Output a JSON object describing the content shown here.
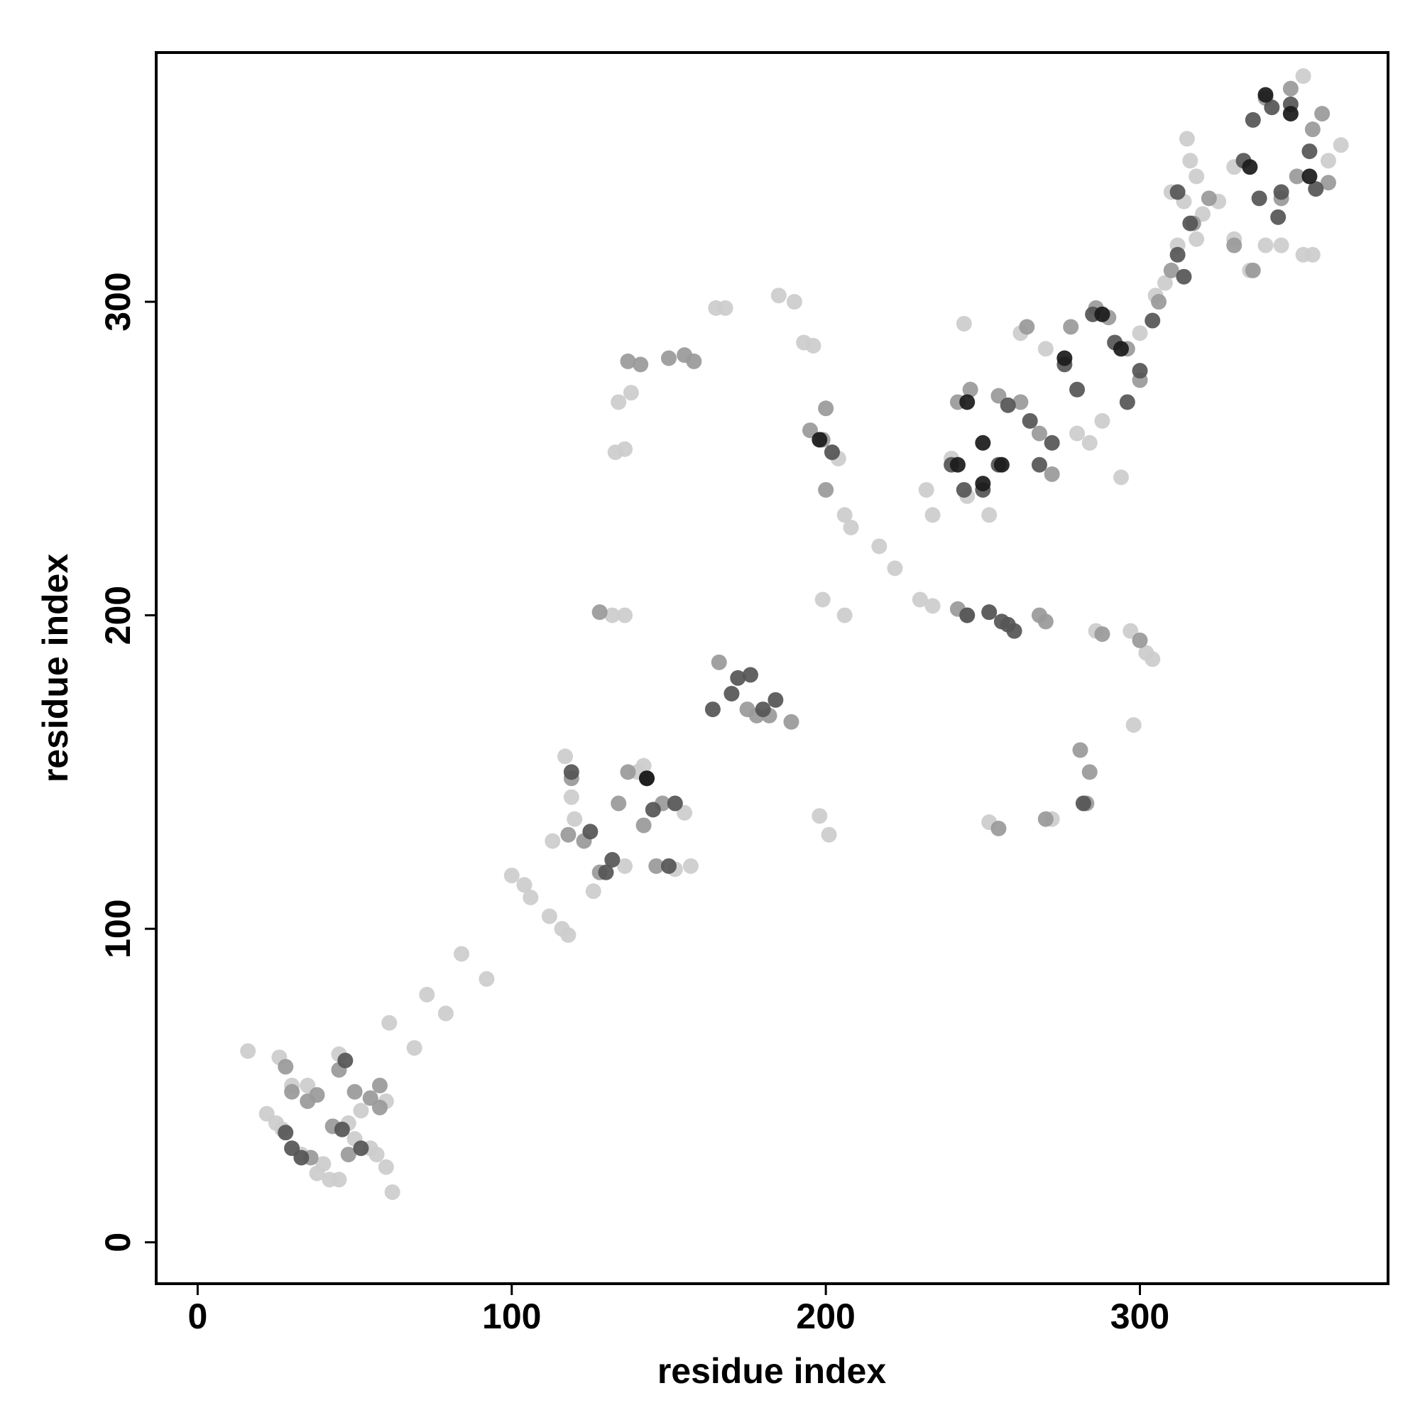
{
  "chart_data": {
    "type": "scatter",
    "x_label": "residue index",
    "y_label": "residue index",
    "xlim": [
      -13.2,
      379
    ],
    "ylim": [
      -13.2,
      379.5
    ],
    "xticks": [
      0,
      100,
      200,
      300
    ],
    "yticks": [
      0,
      100,
      200,
      300
    ],
    "series": [
      {
        "color": "#cccccc",
        "x": [
          16,
          22,
          25,
          27,
          30,
          35,
          40,
          42,
          38,
          45,
          48,
          50,
          55,
          57,
          60,
          62,
          26,
          52,
          60,
          33,
          45,
          61,
          69,
          73,
          79,
          84,
          92,
          100,
          104,
          106,
          112,
          116,
          118,
          117,
          119,
          113,
          126,
          136,
          152,
          157,
          140,
          155,
          120,
          142,
          136,
          132,
          133,
          136,
          134,
          138,
          165,
          168,
          185,
          190,
          193,
          196,
          202,
          204,
          206,
          208,
          217,
          222,
          206,
          199,
          198,
          201,
          230,
          234,
          252,
          286,
          297,
          302,
          304,
          298,
          272,
          252,
          232,
          234,
          240,
          245,
          252,
          244,
          262,
          270,
          280,
          284,
          288,
          294,
          300,
          305,
          308,
          312,
          318,
          315,
          316,
          318,
          314,
          310,
          320,
          325,
          330,
          335,
          340,
          345,
          352,
          355,
          352,
          360,
          364,
          330
        ],
        "y": [
          61,
          41,
          38,
          36,
          50,
          50,
          25,
          20,
          22,
          60,
          38,
          33,
          30,
          28,
          24,
          16,
          59,
          42,
          45,
          28,
          20,
          70,
          62,
          79,
          73,
          92,
          84,
          117,
          114,
          110,
          104,
          100,
          98,
          155,
          142,
          128,
          112,
          120,
          119,
          120,
          150,
          137,
          135,
          152,
          200,
          200,
          252,
          253,
          268,
          271,
          298,
          298,
          302,
          300,
          287,
          286,
          252,
          250,
          232,
          228,
          222,
          215,
          200,
          205,
          136,
          130,
          205,
          203,
          201,
          195,
          195,
          188,
          186,
          165,
          135,
          134,
          240,
          232,
          250,
          238,
          232,
          293,
          290,
          285,
          258,
          255,
          262,
          244,
          290,
          302,
          306,
          318,
          320,
          352,
          345,
          340,
          332,
          335,
          328,
          332,
          320,
          310,
          318,
          318,
          315,
          315,
          372,
          345,
          350,
          343
        ]
      },
      {
        "color": "#999999",
        "x": [
          28,
          30,
          35,
          38,
          45,
          50,
          55,
          58,
          36,
          48,
          43,
          58,
          118,
          123,
          128,
          134,
          142,
          148,
          146,
          119,
          137,
          128,
          137,
          141,
          150,
          155,
          158,
          195,
          199,
          200,
          166,
          175,
          178,
          182,
          189,
          242,
          245,
          268,
          270,
          288,
          300,
          284,
          283,
          281,
          270,
          255,
          242,
          246,
          255,
          262,
          268,
          272,
          278,
          286,
          290,
          296,
          300,
          306,
          310,
          264,
          317,
          322,
          330,
          336,
          345,
          350,
          355,
          358,
          360,
          340,
          348,
          200
        ],
        "y": [
          56,
          48,
          45,
          47,
          55,
          48,
          46,
          43,
          27,
          28,
          37,
          50,
          130,
          128,
          118,
          140,
          133,
          140,
          120,
          148,
          150,
          201,
          281,
          280,
          282,
          283,
          281,
          259,
          256,
          266,
          185,
          170,
          168,
          168,
          166,
          202,
          200,
          200,
          198,
          194,
          192,
          150,
          140,
          157,
          135,
          132,
          268,
          272,
          270,
          268,
          258,
          245,
          292,
          298,
          295,
          285,
          275,
          300,
          310,
          292,
          325,
          333,
          318,
          310,
          333,
          340,
          355,
          360,
          338,
          365,
          368,
          240
        ]
      },
      {
        "color": "#555555",
        "x": [
          28,
          33,
          47,
          30,
          52,
          46,
          119,
          125,
          132,
          143,
          150,
          152,
          145,
          130,
          172,
          176,
          184,
          180,
          170,
          164,
          202,
          245,
          252,
          256,
          258,
          260,
          282,
          240,
          244,
          250,
          255,
          258,
          265,
          268,
          272,
          276,
          280,
          285,
          292,
          296,
          300,
          304,
          312,
          314,
          312,
          316,
          333,
          336,
          338,
          342,
          348,
          354,
          356,
          344,
          345
        ],
        "y": [
          35,
          27,
          58,
          30,
          30,
          36,
          150,
          131,
          122,
          148,
          120,
          140,
          138,
          118,
          180,
          181,
          173,
          170,
          175,
          170,
          252,
          200,
          201,
          198,
          197,
          195,
          140,
          248,
          240,
          240,
          248,
          267,
          262,
          248,
          255,
          280,
          272,
          296,
          287,
          268,
          278,
          294,
          315,
          308,
          335,
          325,
          345,
          358,
          333,
          362,
          363,
          348,
          336,
          327,
          335
        ]
      },
      {
        "color": "#1a1a1a",
        "x": [
          242,
          250,
          256,
          250,
          245,
          276,
          288,
          294,
          335,
          340,
          348,
          354,
          198,
          143
        ],
        "y": [
          248,
          255,
          248,
          242,
          268,
          282,
          296,
          285,
          343,
          366,
          360,
          340,
          256,
          148
        ]
      }
    ]
  }
}
